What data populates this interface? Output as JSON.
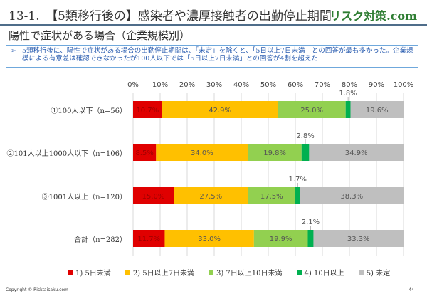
{
  "header": {
    "title": "13-1.　【5類移行後の】感染者や濃厚接触者の出勤停止期間",
    "brand": "リスク対策.com",
    "subtitle": "陽性で症状がある場合（企業規模別）"
  },
  "note": {
    "bullet": "➢",
    "text": "5類移行後に、陽性で症状がある場合の出勤停止期間は、「未定」を除くと、「5日以上7日未満」との回答が最も多かった。企業規模による有意差は確認できなかったが100人以下では「5日以上7日未満」との回答が4割を超えた"
  },
  "chart_data": {
    "type": "bar",
    "orientation": "horizontal-stacked-100",
    "categories": [
      "①100人以下（n=56）",
      "②101人以上1000人以下（n=106）",
      "③1001人以上（n=120）",
      "合計（n=282）"
    ],
    "series": [
      {
        "name": "1) 5日未満",
        "color": "#e00000",
        "values": [
          10.7,
          8.5,
          15.0,
          11.7
        ],
        "labels": [
          "10.7%",
          "8.5%",
          "15.0%",
          "11.7%"
        ]
      },
      {
        "name": "2) 5日以上7日未満",
        "color": "#ffc000",
        "values": [
          42.9,
          34.0,
          27.5,
          33.0
        ],
        "labels": [
          "42.9%",
          "34.0%",
          "27.5%",
          "33.0%"
        ]
      },
      {
        "name": "3) 7日以上10日未満",
        "color": "#92d050",
        "values": [
          25.0,
          19.8,
          17.5,
          19.9
        ],
        "labels": [
          "25.0%",
          "19.8%",
          "17.5%",
          "19.9%"
        ]
      },
      {
        "name": "4) 10日以上",
        "color": "#00b050",
        "values": [
          1.8,
          2.8,
          1.7,
          2.1
        ],
        "labels": [
          "1.8%",
          "2.8%",
          "1.7%",
          "2.1%"
        ]
      },
      {
        "name": "5) 未定",
        "color": "#bfbfbf",
        "values": [
          19.6,
          34.9,
          38.3,
          33.3
        ],
        "labels": [
          "19.6%",
          "34.9%",
          "38.3%",
          "33.3%"
        ]
      }
    ],
    "xlim": [
      0,
      100
    ],
    "xticks": [
      "0%",
      "10%",
      "20%",
      "30%",
      "40%",
      "50%",
      "60%",
      "70%",
      "80%",
      "90%",
      "100%"
    ],
    "grid": true,
    "legend": "bottom"
  },
  "footer": {
    "copyright": "Copyright © Risktaisaku.com",
    "page": "44"
  }
}
